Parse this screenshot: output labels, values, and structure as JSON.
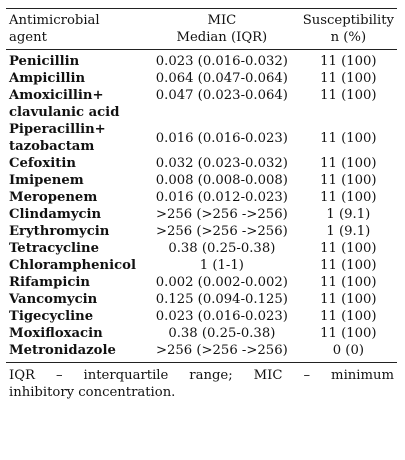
{
  "table": {
    "headers": {
      "agent": [
        "Antimicrobial",
        "agent"
      ],
      "mic": [
        "MIC",
        "Median (IQR)"
      ],
      "susceptibility": [
        "Susceptibility",
        "n (%)"
      ]
    },
    "rows": [
      {
        "agent": [
          "Penicillin"
        ],
        "mic": "0.023 (0.016-0.032)",
        "susceptibility": "11 (100)"
      },
      {
        "agent": [
          "Ampicillin"
        ],
        "mic": "0.064 (0.047-0.064)",
        "susceptibility": "11 (100)"
      },
      {
        "agent": [
          "Amoxicillin+",
          "clavulanic acid"
        ],
        "mic": "0.047 (0.023-0.064)",
        "susceptibility": "11 (100)"
      },
      {
        "agent": [
          "Piperacillin+",
          "tazobactam"
        ],
        "mic": "0.016 (0.016-0.023)",
        "susceptibility": "11 (100)"
      },
      {
        "agent": [
          "Cefoxitin"
        ],
        "mic": "0.032 (0.023-0.032)",
        "susceptibility": "11 (100)"
      },
      {
        "agent": [
          "Imipenem"
        ],
        "mic": "0.008 (0.008-0.008)",
        "susceptibility": "11 (100)"
      },
      {
        "agent": [
          "Meropenem"
        ],
        "mic": "0.016 (0.012-0.023)",
        "susceptibility": "11 (100)"
      },
      {
        "agent": [
          "Clindamycin"
        ],
        "mic": ">256 (>256 ->256)",
        "susceptibility": "1 (9.1)"
      },
      {
        "agent": [
          "Erythromycin"
        ],
        "mic": ">256 (>256 ->256)",
        "susceptibility": "1 (9.1)"
      },
      {
        "agent": [
          "Tetracycline"
        ],
        "mic": "0.38 (0.25-0.38)",
        "susceptibility": "11 (100)"
      },
      {
        "agent": [
          "Chloramphenicol"
        ],
        "mic": "1 (1-1)",
        "susceptibility": "11 (100)"
      },
      {
        "agent": [
          "Rifampicin"
        ],
        "mic": "0.002 (0.002-0.002)",
        "susceptibility": "11 (100)"
      },
      {
        "agent": [
          "Vancomycin"
        ],
        "mic": "0.125 (0.094-0.125)",
        "susceptibility": "11 (100)"
      },
      {
        "agent": [
          "Tigecycline"
        ],
        "mic": "0.023 (0.016-0.023)",
        "susceptibility": "11 (100)"
      },
      {
        "agent": [
          "Moxifloxacin"
        ],
        "mic": "0.38 (0.25-0.38)",
        "susceptibility": "11 (100)"
      },
      {
        "agent": [
          "Metronidazole"
        ],
        "mic": ">256 (>256 ->256)",
        "susceptibility": "0 (0)"
      }
    ]
  },
  "footnote": {
    "line1": "IQR – interquartile range; MIC – minimum",
    "line2": "inhibitory concentration."
  }
}
